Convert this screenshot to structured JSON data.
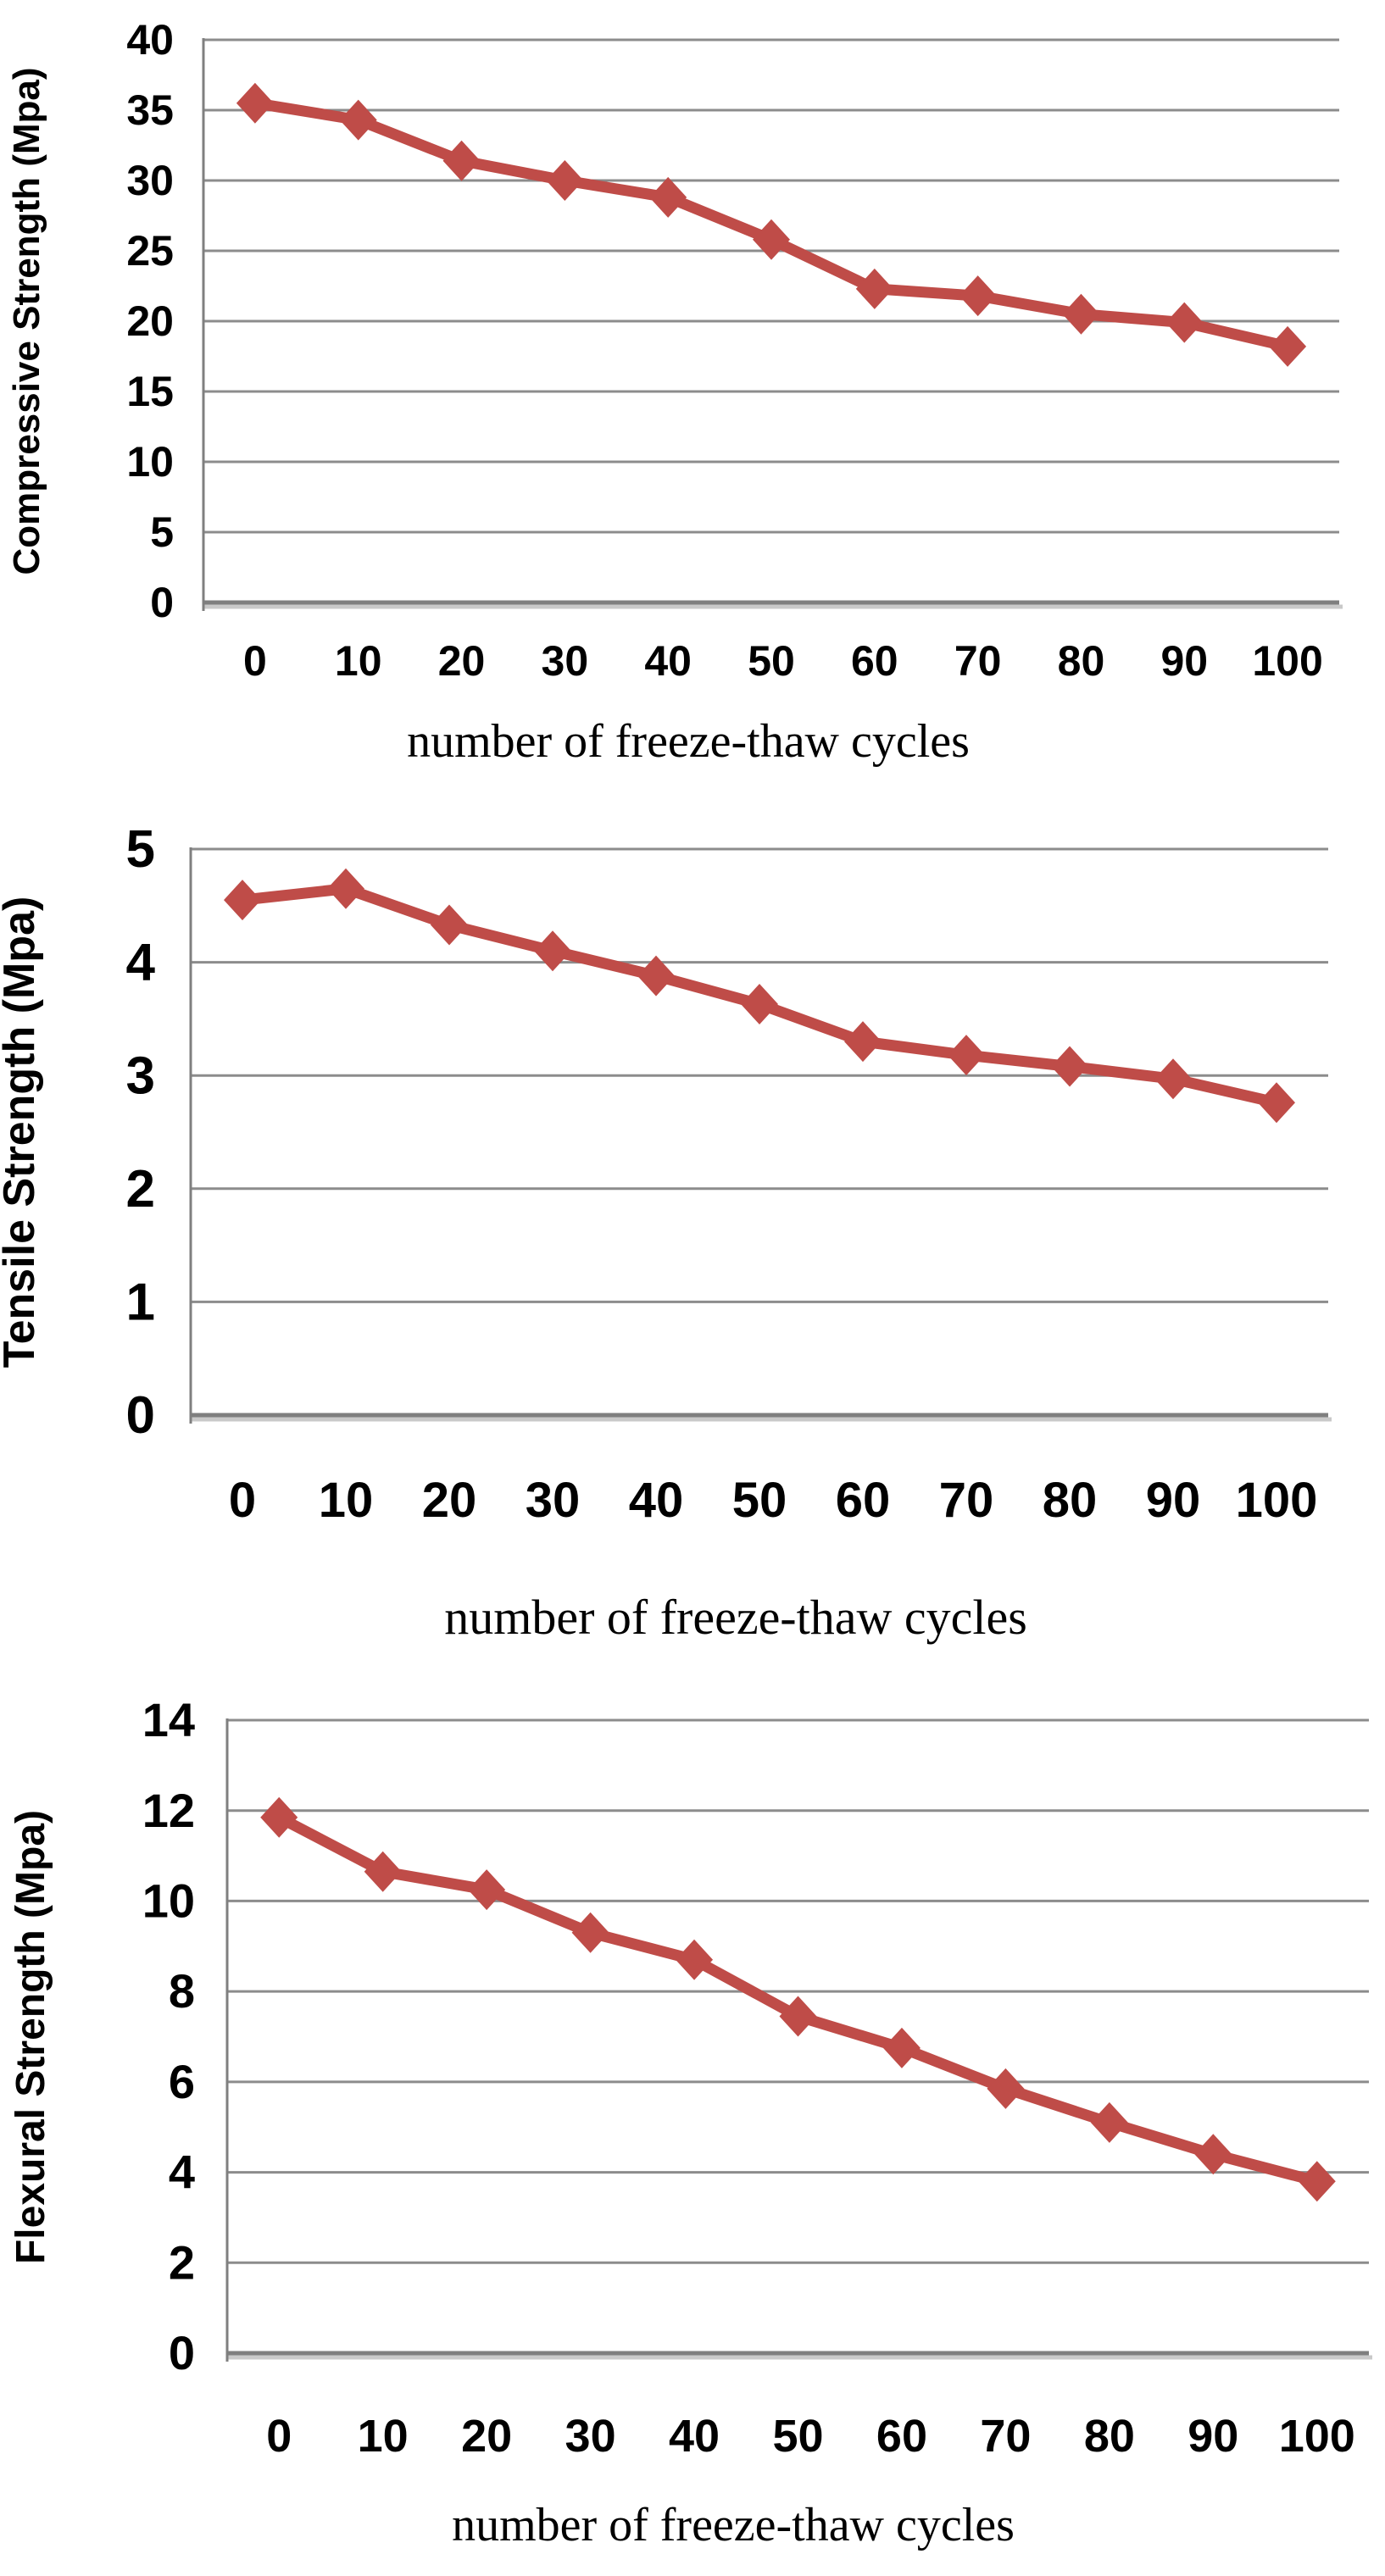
{
  "figure": {
    "description": "Three stacked line charts showing strength loss of concrete versus number of freeze-thaw cycles"
  },
  "colors": {
    "series": "#BF4C48",
    "gridline": "#8C8C8C",
    "gridline_shadow": "#C9C9C9",
    "axis": "#7F7F7F",
    "text": "#000000",
    "background": "#FFFFFF"
  },
  "chart_data": [
    {
      "type": "line",
      "title": "",
      "ylabel": "Compressive Strength (Mpa)",
      "xlabel": "number of freeze-thaw cycles",
      "categories": [
        "0",
        "10",
        "20",
        "30",
        "40",
        "50",
        "60",
        "70",
        "80",
        "90",
        "100"
      ],
      "values": [
        35.5,
        34.3,
        31.4,
        30.0,
        28.8,
        25.8,
        22.3,
        21.8,
        20.5,
        19.9,
        18.2
      ],
      "ylim": [
        0,
        40
      ],
      "ytick_step": 5,
      "yticks": [
        "40",
        "35",
        "30",
        "25",
        "20",
        "15",
        "10",
        "5",
        "0"
      ],
      "grid": true,
      "legend": "none",
      "marker": "diamond"
    },
    {
      "type": "line",
      "title": "",
      "ylabel": "Tensile Strength (Mpa)",
      "xlabel": "number of freeze-thaw cycles",
      "categories": [
        "0",
        "10",
        "20",
        "30",
        "40",
        "50",
        "60",
        "70",
        "80",
        "90",
        "100"
      ],
      "values": [
        4.55,
        4.65,
        4.33,
        4.1,
        3.88,
        3.63,
        3.3,
        3.18,
        3.08,
        2.97,
        2.76
      ],
      "ylim": [
        0,
        5
      ],
      "ytick_step": 1,
      "yticks": [
        "5",
        "4",
        "3",
        "2",
        "1",
        "0"
      ],
      "grid": true,
      "legend": "none",
      "marker": "diamond"
    },
    {
      "type": "line",
      "title": "",
      "ylabel": "Flexural Strength (Mpa)",
      "xlabel": "number of freeze-thaw cycles",
      "categories": [
        "0",
        "10",
        "20",
        "30",
        "40",
        "50",
        "60",
        "70",
        "80",
        "90",
        "100"
      ],
      "values": [
        11.85,
        10.65,
        10.25,
        9.3,
        8.7,
        7.45,
        6.75,
        5.85,
        5.1,
        4.4,
        3.8
      ],
      "ylim": [
        0,
        14
      ],
      "ytick_step": 2,
      "yticks": [
        "14",
        "12",
        "10",
        "8",
        "6",
        "4",
        "2",
        "0"
      ],
      "grid": true,
      "legend": "none",
      "marker": "diamond"
    }
  ]
}
